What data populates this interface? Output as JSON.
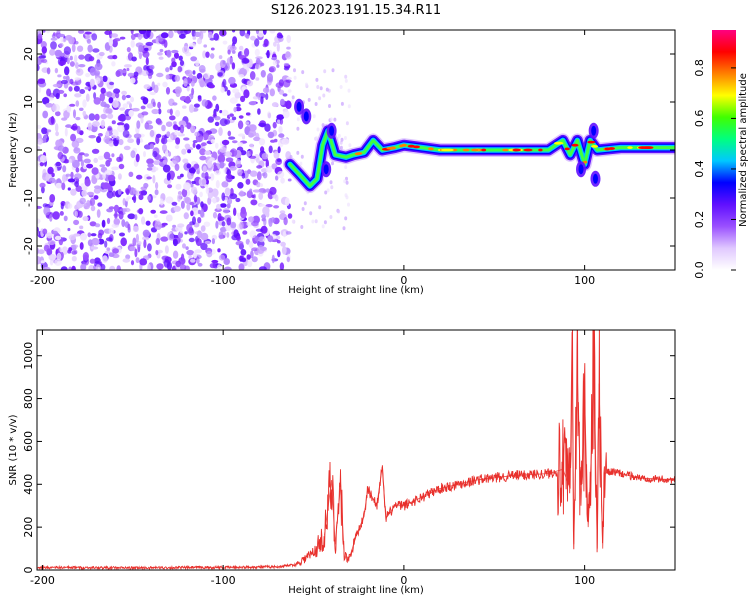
{
  "title": "S126.2023.191.15.34.R11",
  "chart_data": [
    {
      "type": "heatmap",
      "xlabel": "Height of straight line (km)",
      "ylabel": "Frequency (Hz)",
      "xlim": [
        -203,
        150
      ],
      "ylim": [
        -25,
        25
      ],
      "xticks": [
        -200,
        -100,
        0,
        100
      ],
      "yticks": [
        -20,
        -10,
        0,
        10,
        20
      ],
      "colorbar": {
        "label": "Normalized spectral amplitude",
        "range": [
          0,
          0.95
        ],
        "ticks": [
          0.0,
          0.2,
          0.4,
          0.6,
          0.8
        ],
        "stops": [
          "#ffffff",
          "#e0c8ff",
          "#9a50ff",
          "#6010ff",
          "#0000ff",
          "#00c8ff",
          "#00ff80",
          "#40ff00",
          "#ffff00",
          "#ff8000",
          "#ff0000",
          "#ff0080"
        ]
      },
      "noise_region_x": [
        -203,
        -63
      ],
      "carrier_track": [
        {
          "x": -63,
          "y": -3
        },
        {
          "x": -58,
          "y": -5
        },
        {
          "x": -52,
          "y": -7.5
        },
        {
          "x": -48,
          "y": -6
        },
        {
          "x": -45,
          "y": 1
        },
        {
          "x": -42,
          "y": 4
        },
        {
          "x": -38,
          "y": -1
        },
        {
          "x": -32,
          "y": -1.5
        },
        {
          "x": -28,
          "y": -1
        },
        {
          "x": -22,
          "y": -0.5
        },
        {
          "x": -17,
          "y": 2
        },
        {
          "x": -12,
          "y": 0
        },
        {
          "x": -5,
          "y": 0.5
        },
        {
          "x": 0,
          "y": 1
        },
        {
          "x": 10,
          "y": 0.5
        },
        {
          "x": 20,
          "y": 0
        },
        {
          "x": 40,
          "y": 0
        },
        {
          "x": 60,
          "y": 0
        },
        {
          "x": 80,
          "y": 0
        },
        {
          "x": 88,
          "y": 2
        },
        {
          "x": 92,
          "y": -1
        },
        {
          "x": 96,
          "y": 2
        },
        {
          "x": 100,
          "y": -3
        },
        {
          "x": 103,
          "y": 2
        },
        {
          "x": 107,
          "y": 0
        },
        {
          "x": 120,
          "y": 0.5
        },
        {
          "x": 150,
          "y": 0.5
        }
      ],
      "side_features": [
        {
          "x": -58,
          "y": 9
        },
        {
          "x": -54,
          "y": 7
        },
        {
          "x": -43,
          "y": -4
        },
        {
          "x": -40,
          "y": 4
        },
        {
          "x": 98,
          "y": -4
        },
        {
          "x": 105,
          "y": 4
        },
        {
          "x": 106,
          "y": -6
        }
      ]
    },
    {
      "type": "line",
      "xlabel": "Height of straight line (km)",
      "ylabel": "SNR (10 * v/v)",
      "xlim": [
        -203,
        150
      ],
      "ylim": [
        0,
        1120
      ],
      "xticks": [
        -200,
        -100,
        0,
        100
      ],
      "yticks": [
        0,
        200,
        400,
        600,
        800,
        1000
      ],
      "series": [
        {
          "color": "#e8302c",
          "points": [
            {
              "x": -203,
              "y": 12
            },
            {
              "x": -150,
              "y": 10
            },
            {
              "x": -100,
              "y": 12
            },
            {
              "x": -70,
              "y": 15
            },
            {
              "x": -60,
              "y": 25
            },
            {
              "x": -50,
              "y": 80
            },
            {
              "x": -44,
              "y": 160
            },
            {
              "x": -40,
              "y": 420
            },
            {
              "x": -38,
              "y": 120
            },
            {
              "x": -35,
              "y": 400
            },
            {
              "x": -33,
              "y": 60
            },
            {
              "x": -30,
              "y": 60
            },
            {
              "x": -26,
              "y": 170
            },
            {
              "x": -22,
              "y": 250
            },
            {
              "x": -20,
              "y": 380
            },
            {
              "x": -15,
              "y": 300
            },
            {
              "x": -12,
              "y": 480
            },
            {
              "x": -10,
              "y": 240
            },
            {
              "x": -5,
              "y": 300
            },
            {
              "x": 0,
              "y": 300
            },
            {
              "x": 10,
              "y": 340
            },
            {
              "x": 20,
              "y": 380
            },
            {
              "x": 40,
              "y": 420
            },
            {
              "x": 60,
              "y": 440
            },
            {
              "x": 80,
              "y": 450
            },
            {
              "x": 88,
              "y": 470
            },
            {
              "x": 92,
              "y": 380
            },
            {
              "x": 93,
              "y": 1110
            },
            {
              "x": 94,
              "y": 120
            },
            {
              "x": 96,
              "y": 900
            },
            {
              "x": 98,
              "y": 300
            },
            {
              "x": 100,
              "y": 800
            },
            {
              "x": 102,
              "y": 200
            },
            {
              "x": 104,
              "y": 600
            },
            {
              "x": 105,
              "y": 1000
            },
            {
              "x": 107,
              "y": 100
            },
            {
              "x": 108,
              "y": 870
            },
            {
              "x": 110,
              "y": 100
            },
            {
              "x": 111,
              "y": 450
            },
            {
              "x": 115,
              "y": 460
            },
            {
              "x": 130,
              "y": 430
            },
            {
              "x": 150,
              "y": 420
            }
          ]
        }
      ]
    }
  ]
}
